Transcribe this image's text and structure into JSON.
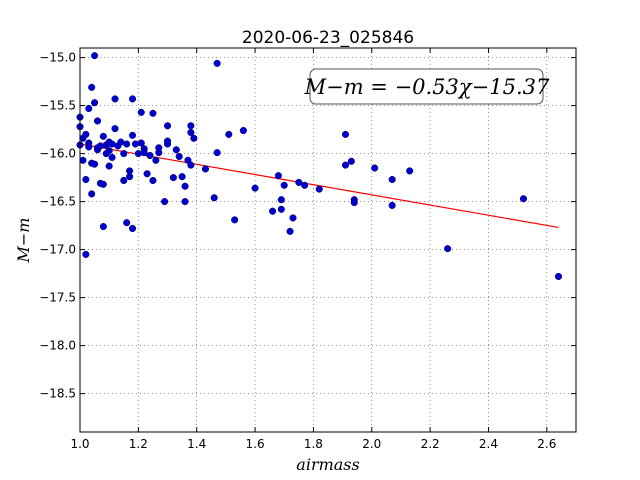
{
  "chart_data": {
    "type": "scatter",
    "title": "2020-06-23_025846",
    "xlabel": "airmass",
    "ylabel": "M−m",
    "xlim": [
      1.0,
      2.7
    ],
    "ylim": [
      -18.9,
      -14.9
    ],
    "y_inverted": true,
    "grid": true,
    "x_ticks": [
      1.0,
      1.2,
      1.4,
      1.6,
      1.8,
      2.0,
      2.2,
      2.4,
      2.6
    ],
    "x_tick_labels": [
      "1.0",
      "1.2",
      "1.4",
      "1.6",
      "1.8",
      "2.0",
      "2.2",
      "2.4",
      "2.6"
    ],
    "y_ticks": [
      -15.0,
      -15.5,
      -16.0,
      -16.5,
      -17.0,
      -17.5,
      -18.0,
      -18.5
    ],
    "y_tick_labels": [
      "−15.0",
      "−15.5",
      "−16.0",
      "−16.5",
      "−17.0",
      "−17.5",
      "−18.0",
      "−18.5"
    ],
    "annotation": "M−m = −0.53χ−15.37",
    "annotation_position": "top-right",
    "colors": {
      "points": "#0000cc",
      "fit": "#ff0000"
    },
    "fit": {
      "slope": -0.53,
      "intercept": -15.37,
      "x_range": [
        1.0,
        2.64
      ]
    },
    "points": {
      "x": [
        1.0,
        1.0,
        1.0,
        1.01,
        1.01,
        1.02,
        1.02,
        1.02,
        1.03,
        1.03,
        1.03,
        1.04,
        1.04,
        1.04,
        1.05,
        1.05,
        1.05,
        1.06,
        1.06,
        1.06,
        1.07,
        1.07,
        1.08,
        1.08,
        1.08,
        1.09,
        1.09,
        1.1,
        1.1,
        1.1,
        1.11,
        1.11,
        1.12,
        1.12,
        1.13,
        1.14,
        1.15,
        1.15,
        1.16,
        1.16,
        1.17,
        1.17,
        1.18,
        1.18,
        1.18,
        1.19,
        1.2,
        1.21,
        1.21,
        1.22,
        1.22,
        1.23,
        1.24,
        1.25,
        1.25,
        1.26,
        1.27,
        1.27,
        1.29,
        1.3,
        1.3,
        1.3,
        1.32,
        1.33,
        1.34,
        1.35,
        1.36,
        1.36,
        1.37,
        1.38,
        1.38,
        1.38,
        1.39,
        1.43,
        1.46,
        1.47,
        1.47,
        1.51,
        1.53,
        1.56,
        1.6,
        1.66,
        1.68,
        1.69,
        1.69,
        1.7,
        1.72,
        1.73,
        1.75,
        1.77,
        1.82,
        1.91,
        1.91,
        1.93,
        1.94,
        1.94,
        2.01,
        2.07,
        2.07,
        2.13,
        2.26,
        2.52,
        2.64
      ],
      "y": [
        -15.62,
        -15.72,
        -15.91,
        -16.07,
        -15.84,
        -17.05,
        -15.8,
        -16.27,
        -15.53,
        -15.89,
        -15.93,
        -15.31,
        -16.42,
        -16.1,
        -14.98,
        -15.47,
        -16.11,
        -15.66,
        -15.96,
        -15.94,
        -16.31,
        -15.92,
        -15.82,
        -16.32,
        -16.76,
        -16.0,
        -15.91,
        -15.97,
        -15.88,
        -16.13,
        -16.04,
        -15.9,
        -15.74,
        -15.43,
        -15.92,
        -15.88,
        -16.0,
        -16.28,
        -16.72,
        -15.9,
        -16.18,
        -16.24,
        -15.43,
        -15.81,
        -16.78,
        -15.9,
        -16.0,
        -15.57,
        -15.89,
        -15.95,
        -15.99,
        -16.21,
        -16.02,
        -15.58,
        -16.28,
        -16.07,
        -15.99,
        -15.94,
        -16.5,
        -15.71,
        -15.87,
        -15.9,
        -16.25,
        -15.96,
        -16.03,
        -16.24,
        -16.5,
        -16.34,
        -16.07,
        -15.71,
        -15.78,
        -16.12,
        -15.84,
        -16.16,
        -16.46,
        -15.06,
        -15.99,
        -15.8,
        -16.69,
        -15.76,
        -16.36,
        -16.6,
        -16.23,
        -16.48,
        -16.58,
        -16.33,
        -16.81,
        -16.67,
        -16.3,
        -16.33,
        -16.37,
        -15.8,
        -16.12,
        -16.08,
        -16.48,
        -16.51,
        -16.15,
        -16.27,
        -16.54,
        -16.18,
        -16.99,
        -16.47,
        -17.28
      ]
    }
  }
}
